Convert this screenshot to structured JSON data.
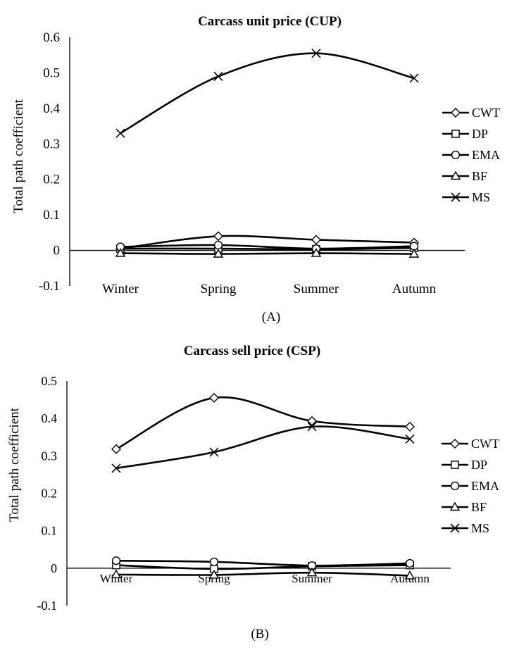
{
  "figure": {
    "panels": [
      {
        "caption": "(A)"
      },
      {
        "caption": "(B)"
      }
    ]
  },
  "chart_data": [
    {
      "type": "line",
      "title": "Carcass unit price (CUP)",
      "xlabel": "",
      "ylabel": "Total path coefficient",
      "categories": [
        "Winter",
        "Spring",
        "Summer",
        "Autumn"
      ],
      "ylim": [
        -0.1,
        0.6
      ],
      "yticks": [
        -0.1,
        0,
        0.1,
        0.2,
        0.3,
        0.4,
        0.5,
        0.6
      ],
      "ytick_labels": [
        "-0.1",
        "0",
        "0.1",
        "0.2",
        "0.3",
        "0.4",
        "0.5",
        "0.6"
      ],
      "grid": false,
      "legend": "right",
      "series": [
        {
          "name": "CWT",
          "marker": "diamond",
          "values": [
            0.005,
            0.04,
            0.03,
            0.022
          ]
        },
        {
          "name": "DP",
          "marker": "square",
          "values": [
            0.005,
            0.005,
            0.003,
            0.007
          ]
        },
        {
          "name": "EMA",
          "marker": "circle",
          "values": [
            0.01,
            0.015,
            0.005,
            0.012
          ]
        },
        {
          "name": "BF",
          "marker": "triangle",
          "values": [
            -0.008,
            -0.01,
            -0.008,
            -0.01
          ]
        },
        {
          "name": "MS",
          "marker": "x",
          "values": [
            0.33,
            0.49,
            0.555,
            0.485
          ]
        }
      ]
    },
    {
      "type": "line",
      "title": "Carcass sell price (CSP)",
      "xlabel": "",
      "ylabel": "Total path coefficient",
      "categories": [
        "Winter",
        "Spring",
        "Summer",
        "Autumn"
      ],
      "ylim": [
        -0.1,
        0.5
      ],
      "yticks": [
        -0.1,
        0,
        0.1,
        0.2,
        0.3,
        0.4,
        0.5
      ],
      "ytick_labels": [
        "-0.1",
        "0",
        "0.1",
        "0.2",
        "0.3",
        "0.4",
        "0.5"
      ],
      "grid": false,
      "legend": "right",
      "series": [
        {
          "name": "CWT",
          "marker": "diamond",
          "values": [
            0.318,
            0.455,
            0.393,
            0.378
          ]
        },
        {
          "name": "DP",
          "marker": "square",
          "values": [
            0.008,
            -0.002,
            0.005,
            0.008
          ]
        },
        {
          "name": "EMA",
          "marker": "circle",
          "values": [
            0.02,
            0.017,
            0.007,
            0.013
          ]
        },
        {
          "name": "BF",
          "marker": "triangle",
          "values": [
            -0.017,
            -0.018,
            -0.012,
            -0.02
          ]
        },
        {
          "name": "MS",
          "marker": "x",
          "values": [
            0.267,
            0.31,
            0.378,
            0.345
          ]
        }
      ]
    }
  ]
}
